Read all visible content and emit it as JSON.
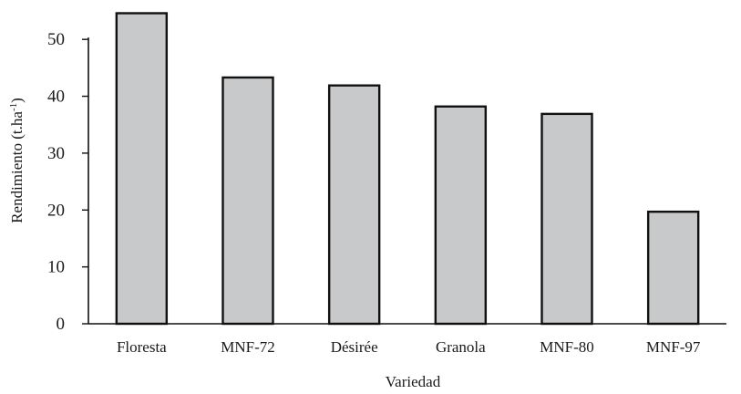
{
  "chart_data": {
    "type": "bar",
    "categories": [
      "Floresta",
      "MNF-72",
      "Désirée",
      "Granola",
      "MNF-80",
      "MNF-97"
    ],
    "values": [
      54.6,
      43.3,
      41.9,
      38.2,
      36.9,
      19.7
    ],
    "xlabel": "Variedad",
    "ylabel": "Rendimiento (t.ha",
    "ylabel_superscript": "-1",
    "ylabel_close": ")",
    "ylim": [
      0,
      55
    ],
    "yticks": [
      0,
      10,
      20,
      30,
      40,
      50
    ],
    "ytick_labels": [
      "0",
      "10",
      "20",
      "30",
      "40",
      "50"
    ],
    "bar_color": "#c8c9cb",
    "bar_edge_color": "#111111",
    "grid": false,
    "legend": "none"
  }
}
